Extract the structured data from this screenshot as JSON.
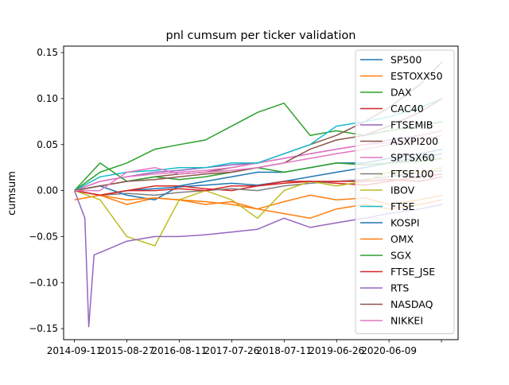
{
  "chart_data": {
    "type": "line",
    "title": "pnl cumsum per ticker validation",
    "xlabel": "",
    "ylabel": "cumsum",
    "x_ticks": [
      "2014-09-11",
      "2015-08-27",
      "2016-08-11",
      "2017-07-26",
      "2018-07-11",
      "2019-06-26",
      "2020-06-09",
      ""
    ],
    "xlim": [
      "2014-07-01",
      "2021-09-15"
    ],
    "ylim": [
      -0.162,
      0.157
    ],
    "y_ticks": [
      -0.15,
      -0.1,
      -0.05,
      0.0,
      0.05,
      0.1,
      0.15
    ],
    "y_tick_labels": [
      "−0.15",
      "−0.10",
      "−0.05",
      "0.00",
      "0.05",
      "0.10",
      "0.15"
    ],
    "grid": false,
    "legend_position": "right",
    "series": [
      {
        "name": "SP500",
        "color": "#1f77b4",
        "x": [
          "2014-09-11",
          "2015-03-01",
          "2015-08-27",
          "2016-03-01",
          "2016-08-11",
          "2017-02-01",
          "2017-07-26",
          "2018-01-15",
          "2018-07-11",
          "2019-01-01",
          "2019-06-26",
          "2020-01-01",
          "2020-06-09",
          "2021-01-01",
          "2021-06-01"
        ],
        "values": [
          0.0,
          -0.005,
          0.0,
          0.002,
          0.004,
          0.006,
          0.008,
          0.006,
          0.01,
          0.015,
          0.02,
          0.025,
          0.03,
          0.036,
          0.04
        ]
      },
      {
        "name": "ESTOXX50",
        "color": "#ff7f0e",
        "x": [
          "2014-09-11",
          "2015-03-01",
          "2015-08-27",
          "2016-03-01",
          "2016-08-11",
          "2017-02-01",
          "2017-07-26",
          "2018-01-15",
          "2018-07-11",
          "2019-01-01",
          "2019-06-26",
          "2020-01-01",
          "2020-06-09",
          "2021-01-01",
          "2021-06-01"
        ],
        "values": [
          -0.01,
          -0.005,
          -0.015,
          -0.008,
          -0.01,
          -0.012,
          -0.015,
          -0.02,
          -0.012,
          -0.005,
          -0.01,
          -0.008,
          -0.015,
          -0.01,
          -0.005
        ]
      },
      {
        "name": "DAX",
        "color": "#2ca02c",
        "x": [
          "2014-09-11",
          "2015-03-01",
          "2015-08-27",
          "2016-03-01",
          "2016-08-11",
          "2017-02-01",
          "2017-07-26",
          "2018-01-15",
          "2018-07-11",
          "2019-01-01",
          "2019-06-26",
          "2020-01-01",
          "2020-06-09",
          "2021-01-01",
          "2021-06-01"
        ],
        "values": [
          0.0,
          0.02,
          0.03,
          0.045,
          0.05,
          0.055,
          0.07,
          0.085,
          0.095,
          0.06,
          0.065,
          0.06,
          0.065,
          0.07,
          0.075
        ]
      },
      {
        "name": "CAC40",
        "color": "#d62728",
        "x": [
          "2014-09-11",
          "2015-03-01",
          "2015-08-27",
          "2016-03-01",
          "2016-08-11",
          "2017-02-01",
          "2017-07-26",
          "2018-01-15",
          "2018-07-11",
          "2019-01-01",
          "2019-06-26",
          "2020-01-01",
          "2020-06-09",
          "2021-01-01",
          "2021-06-01"
        ],
        "values": [
          0.0,
          -0.005,
          0.0,
          0.005,
          0.005,
          0.002,
          0.0,
          0.005,
          0.01,
          0.01,
          0.008,
          0.006,
          0.01,
          0.015,
          0.018
        ]
      },
      {
        "name": "FTSEMIB",
        "color": "#9467bd",
        "x": [
          "2014-09-11",
          "2015-03-01",
          "2015-08-27",
          "2016-03-01",
          "2016-08-11",
          "2017-02-01",
          "2017-07-26",
          "2018-01-15",
          "2018-07-11",
          "2019-01-01",
          "2019-06-26",
          "2020-01-01",
          "2020-06-09",
          "2021-01-01",
          "2021-06-01"
        ],
        "values": [
          0.0,
          0.01,
          0.015,
          0.02,
          0.022,
          0.025,
          0.028,
          0.03,
          0.035,
          0.04,
          0.045,
          0.05,
          0.055,
          0.06,
          0.065
        ]
      },
      {
        "name": "ASXPI200",
        "color": "#8c564b",
        "x": [
          "2014-09-11",
          "2015-03-01",
          "2015-08-27",
          "2016-03-01",
          "2016-08-11",
          "2017-02-01",
          "2017-07-26",
          "2018-01-15",
          "2018-07-11",
          "2019-01-01",
          "2019-06-26",
          "2020-01-01",
          "2020-06-09",
          "2021-01-01",
          "2021-06-01"
        ],
        "values": [
          0.0,
          0.005,
          0.01,
          0.015,
          0.018,
          0.02,
          0.025,
          0.03,
          0.04,
          0.05,
          0.06,
          0.075,
          0.09,
          0.115,
          0.14
        ]
      },
      {
        "name": "SPTSX60",
        "color": "#e377c2",
        "x": [
          "2014-09-11",
          "2015-03-01",
          "2015-08-27",
          "2016-03-01",
          "2016-08-11",
          "2017-02-01",
          "2017-07-26",
          "2018-01-15",
          "2018-07-11",
          "2019-01-01",
          "2019-06-26",
          "2020-01-01",
          "2020-06-09",
          "2021-01-01",
          "2021-06-01"
        ],
        "values": [
          0.0,
          0.01,
          0.015,
          0.018,
          0.02,
          0.022,
          0.025,
          0.03,
          0.035,
          0.04,
          0.045,
          0.05,
          0.052,
          0.055,
          0.06
        ]
      },
      {
        "name": "FTSE100",
        "color": "#7f7f7f",
        "x": [
          "2014-09-11",
          "2015-03-01",
          "2015-08-27",
          "2016-03-01",
          "2016-08-11",
          "2017-02-01",
          "2017-07-26",
          "2018-01-15",
          "2018-07-11",
          "2019-01-01",
          "2019-06-26",
          "2020-01-01",
          "2020-06-09",
          "2021-01-01",
          "2021-06-01"
        ],
        "values": [
          0.0,
          -0.005,
          -0.003,
          -0.005,
          -0.002,
          0.0,
          0.002,
          0.0,
          0.005,
          0.008,
          0.01,
          0.012,
          0.015,
          0.02,
          0.022
        ]
      },
      {
        "name": "IBOV",
        "color": "#bcbd22",
        "x": [
          "2014-09-11",
          "2015-03-01",
          "2015-08-27",
          "2016-03-01",
          "2016-08-11",
          "2017-02-01",
          "2017-07-26",
          "2018-01-15",
          "2018-07-11",
          "2019-01-01",
          "2019-06-26",
          "2020-01-01",
          "2020-06-09",
          "2021-01-01",
          "2021-06-01"
        ],
        "values": [
          0.0,
          -0.01,
          -0.05,
          -0.06,
          -0.01,
          0.0,
          -0.01,
          -0.03,
          0.0,
          0.01,
          0.005,
          0.01,
          0.02,
          0.02,
          0.025
        ]
      },
      {
        "name": "FTSE",
        "color": "#17becf",
        "x": [
          "2014-09-11",
          "2015-03-01",
          "2015-08-27",
          "2016-03-01",
          "2016-08-11",
          "2017-02-01",
          "2017-07-26",
          "2018-01-15",
          "2018-07-11",
          "2019-01-01",
          "2019-06-26",
          "2020-01-01",
          "2020-06-09",
          "2021-01-01",
          "2021-06-01"
        ],
        "values": [
          0.0,
          0.015,
          0.02,
          0.022,
          0.025,
          0.025,
          0.03,
          0.03,
          0.04,
          0.05,
          0.07,
          0.075,
          0.08,
          0.09,
          0.1
        ]
      },
      {
        "name": "KOSPI",
        "color": "#1f77b4",
        "x": [
          "2014-09-11",
          "2015-03-01",
          "2015-08-27",
          "2016-03-01",
          "2016-08-11",
          "2017-02-01",
          "2017-07-26",
          "2018-01-15",
          "2018-07-11",
          "2019-01-01",
          "2019-06-26",
          "2020-01-01",
          "2020-06-09",
          "2021-01-01",
          "2021-06-01"
        ],
        "values": [
          0.0,
          0.005,
          -0.005,
          -0.01,
          0.005,
          0.01,
          0.015,
          0.02,
          0.02,
          0.025,
          0.03,
          0.03,
          0.035,
          0.04,
          0.045
        ]
      },
      {
        "name": "OMX",
        "color": "#ff7f0e",
        "x": [
          "2014-09-11",
          "2015-03-01",
          "2015-08-27",
          "2016-03-01",
          "2016-08-11",
          "2017-02-01",
          "2017-07-26",
          "2018-01-15",
          "2018-07-11",
          "2019-01-01",
          "2019-06-26",
          "2020-01-01",
          "2020-06-09",
          "2021-01-01",
          "2021-06-01"
        ],
        "values": [
          0.0,
          -0.005,
          -0.01,
          -0.008,
          -0.01,
          -0.015,
          -0.012,
          -0.02,
          -0.025,
          -0.03,
          -0.02,
          -0.015,
          -0.02,
          -0.015,
          -0.01
        ]
      },
      {
        "name": "SGX",
        "color": "#2ca02c",
        "x": [
          "2014-09-11",
          "2015-03-01",
          "2015-08-27",
          "2016-03-01",
          "2016-08-11",
          "2017-02-01",
          "2017-07-26",
          "2018-01-15",
          "2018-07-11",
          "2019-01-01",
          "2019-06-26",
          "2020-01-01",
          "2020-06-09",
          "2021-01-01",
          "2021-06-01"
        ],
        "values": [
          0.0,
          0.03,
          0.01,
          0.015,
          0.012,
          0.015,
          0.02,
          0.025,
          0.02,
          0.025,
          0.03,
          0.028,
          0.03,
          0.032,
          0.035
        ]
      },
      {
        "name": "FTSE_JSE",
        "color": "#d62728",
        "x": [
          "2014-09-11",
          "2015-03-01",
          "2015-08-27",
          "2016-03-01",
          "2016-08-11",
          "2017-02-01",
          "2017-07-26",
          "2018-01-15",
          "2018-07-11",
          "2019-01-01",
          "2019-06-26",
          "2020-01-01",
          "2020-06-09",
          "2021-01-01",
          "2021-06-01"
        ],
        "values": [
          0.0,
          -0.005,
          0.0,
          0.0,
          0.002,
          0.0,
          0.005,
          0.005,
          0.008,
          0.01,
          0.01,
          0.01,
          0.012,
          0.01,
          0.015
        ]
      },
      {
        "name": "RTS",
        "color": "#9467bd",
        "x": [
          "2014-09-11",
          "2014-11-20",
          "2014-12-16",
          "2015-01-20",
          "2015-08-27",
          "2016-03-01",
          "2016-08-11",
          "2017-02-01",
          "2017-07-26",
          "2018-01-15",
          "2018-07-11",
          "2019-01-01",
          "2019-06-26",
          "2020-01-01",
          "2020-06-09",
          "2021-01-01",
          "2021-06-01"
        ],
        "values": [
          0.0,
          -0.03,
          -0.148,
          -0.07,
          -0.055,
          -0.05,
          -0.05,
          -0.048,
          -0.045,
          -0.042,
          -0.03,
          -0.04,
          -0.035,
          -0.03,
          -0.025,
          -0.02,
          -0.015
        ]
      },
      {
        "name": "NASDAQ",
        "color": "#8c564b",
        "x": [
          "2014-09-11",
          "2015-03-01",
          "2015-08-27",
          "2016-03-01",
          "2016-08-11",
          "2017-02-01",
          "2017-07-26",
          "2018-01-15",
          "2018-07-11",
          "2019-01-01",
          "2019-06-26",
          "2020-01-01",
          "2020-06-09",
          "2021-01-01",
          "2021-06-01"
        ],
        "values": [
          0.0,
          0.005,
          0.01,
          0.012,
          0.015,
          0.018,
          0.02,
          0.025,
          0.03,
          0.045,
          0.055,
          0.06,
          0.07,
          0.085,
          0.1
        ]
      },
      {
        "name": "NIKKEI",
        "color": "#e377c2",
        "x": [
          "2014-09-11",
          "2015-03-01",
          "2015-08-27",
          "2016-03-01",
          "2016-08-11",
          "2017-02-01",
          "2017-07-26",
          "2018-01-15",
          "2018-07-11",
          "2019-01-01",
          "2019-06-26",
          "2020-01-01",
          "2020-06-09",
          "2021-01-01",
          "2021-06-01"
        ],
        "values": [
          0.0,
          0.0,
          0.02,
          0.025,
          0.018,
          0.02,
          0.022,
          0.025,
          0.03,
          0.035,
          0.04,
          0.045,
          0.05,
          0.06,
          0.065
        ]
      }
    ]
  }
}
